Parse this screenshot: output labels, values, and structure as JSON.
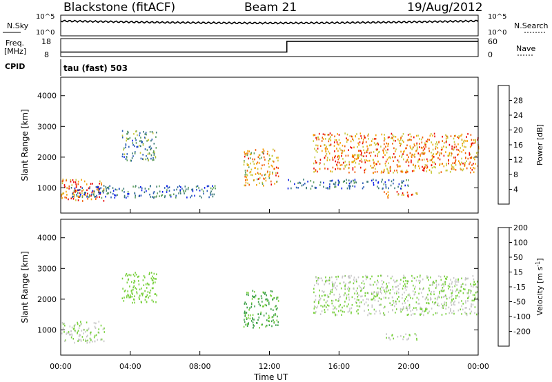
{
  "header": {
    "station": "Blackstone (fitACF)",
    "beam": "Beam 21",
    "date": "19/Aug/2012"
  },
  "noise_panel": {
    "left_label": "N.Sky",
    "right_label": "N.Search",
    "y_ticks": [
      "10^5",
      "10^0"
    ]
  },
  "freq_panel": {
    "left_label_line1": "Freq.",
    "left_label_line2": "[MHz]",
    "right_label": "Nave",
    "left_ticks": [
      "18",
      "8"
    ],
    "right_ticks": [
      "60",
      "0"
    ]
  },
  "cpid": {
    "label": "CPID",
    "value": "tau (fast) 503"
  },
  "time_axis": {
    "ticks": [
      "00:00",
      "04:00",
      "08:00",
      "12:00",
      "16:00",
      "20:00",
      "00:00"
    ],
    "label": "Time UT"
  },
  "range_axis": {
    "label": "Slant Range [km]",
    "ticks": [
      "1000",
      "2000",
      "3000",
      "4000"
    ]
  },
  "power_scale": {
    "label": "Power [dB]",
    "ticks": [
      "4",
      "8",
      "12",
      "16",
      "20",
      "24",
      "28"
    ],
    "colors": [
      "#0a1ee6",
      "#2a5cb4",
      "#3c7a78",
      "#5f9f5f",
      "#c8c83c",
      "#f5a000",
      "#f05a00",
      "#e80000"
    ]
  },
  "velocity_scale": {
    "label": "Velocity [m s",
    "label_sup": "-1",
    "label_end": "]",
    "ticks": [
      "200",
      "100",
      "50",
      "15",
      "-15",
      "-50",
      "-100",
      "-200"
    ],
    "colors": [
      "#1432c8",
      "#2e7ab4",
      "#3ca046",
      "#78d03c",
      "#c8c8c8",
      "#f0b43c",
      "#f07800",
      "#e81e1e"
    ]
  },
  "chart_data": {
    "type": "heatmap",
    "title": "Blackstone (fitACF)  Beam 21  19/Aug/2012",
    "xlabel": "Time UT",
    "ylabel": "Slant Range [km]",
    "xlim": [
      "00:00",
      "24:00"
    ],
    "ylim": [
      180,
      4600
    ],
    "panels": [
      {
        "name": "Power",
        "unit": "dB",
        "clim": [
          0,
          30
        ],
        "echo_regions": [
          {
            "t_start": 0.0,
            "t_end": 2.5,
            "range_start": 600,
            "range_end": 1300,
            "value": 24
          },
          {
            "t_start": 0.5,
            "t_end": 9.0,
            "range_start": 700,
            "range_end": 1100,
            "value": 8
          },
          {
            "t_start": 3.5,
            "t_end": 5.5,
            "range_start": 1900,
            "range_end": 2900,
            "value": 10
          },
          {
            "t_start": 10.5,
            "t_end": 12.5,
            "range_start": 1100,
            "range_end": 2300,
            "value": 20
          },
          {
            "t_start": 14.5,
            "t_end": 24.0,
            "range_start": 1500,
            "range_end": 2800,
            "value": 22
          },
          {
            "t_start": 13.0,
            "t_end": 20.0,
            "range_start": 1000,
            "range_end": 1300,
            "value": 8
          },
          {
            "t_start": 18.5,
            "t_end": 20.5,
            "range_start": 700,
            "range_end": 900,
            "value": 24
          }
        ]
      },
      {
        "name": "Velocity",
        "unit": "m s^-1",
        "clim": [
          -200,
          200
        ],
        "echo_regions": [
          {
            "t_start": 0.0,
            "t_end": 2.5,
            "range_start": 600,
            "range_end": 1300,
            "value": 0
          },
          {
            "t_start": 3.5,
            "t_end": 5.5,
            "range_start": 1900,
            "range_end": 2900,
            "value": 30
          },
          {
            "t_start": 10.5,
            "t_end": 12.5,
            "range_start": 1100,
            "range_end": 2300,
            "value": 60
          },
          {
            "t_start": 14.5,
            "t_end": 24.0,
            "range_start": 1500,
            "range_end": 2800,
            "value": 0
          },
          {
            "t_start": 18.5,
            "t_end": 20.5,
            "range_start": 700,
            "range_end": 900,
            "value": 0
          }
        ]
      }
    ],
    "frequency_MHz": [
      {
        "t": 0.0,
        "value": 10.5
      },
      {
        "t": 13.0,
        "value": 10.5
      },
      {
        "t": 13.0,
        "value": 16.5
      },
      {
        "t": 24.0,
        "value": 16.5
      }
    ],
    "freq_ylim": [
      8,
      18
    ],
    "nave_ylim": [
      0,
      60
    ],
    "noise_ylim": [
      "10^0",
      "10^5"
    ]
  }
}
